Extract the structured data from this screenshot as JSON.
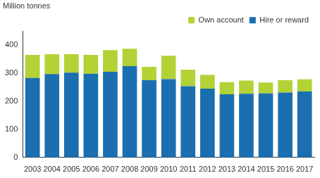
{
  "chart_data": {
    "type": "bar",
    "stacked": true,
    "grid": false,
    "legend": "top-right",
    "y_label": "Million tonnes",
    "categories": [
      "2003",
      "2004",
      "2005",
      "2006",
      "2007",
      "2008",
      "2009",
      "2010",
      "2011",
      "2012",
      "2013",
      "2014",
      "2015",
      "2016",
      "2017"
    ],
    "series": [
      {
        "name": "Hire or reward",
        "color": "#1b6fb0",
        "values": [
          283,
          297,
          302,
          298,
          305,
          325,
          275,
          279,
          254,
          245,
          225,
          227,
          228,
          231,
          235
        ]
      },
      {
        "name": "Own account",
        "color": "#b2d235",
        "values": [
          82,
          71,
          66,
          67,
          77,
          62,
          48,
          83,
          59,
          49,
          43,
          47,
          39,
          44,
          43
        ]
      }
    ],
    "ylim": [
      0,
      450
    ],
    "yticks": [
      0,
      100,
      200,
      300,
      400
    ]
  }
}
